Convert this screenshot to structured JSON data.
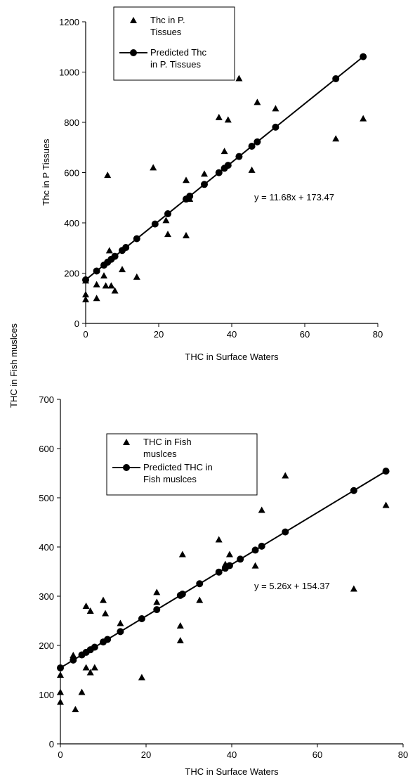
{
  "chart_data": [
    {
      "type": "scatter",
      "title": "",
      "xlabel": "THC in Surface Waters",
      "ylabel": "Thc in  P Tissues",
      "xlim": [
        0,
        80
      ],
      "ylim": [
        0,
        1200
      ],
      "xticks": [
        "0",
        "20",
        "40",
        "60",
        "80"
      ],
      "yticks": [
        "0",
        "200",
        "400",
        "600",
        "800",
        "1000",
        "1200"
      ],
      "legend": [
        "Thc in P. Tissues",
        "Predicted Thc in P. Tissues"
      ],
      "legend_lines": [
        [
          "Thc in P.",
          "Tissues"
        ],
        [
          "Predicted Thc",
          "in P. Tissues"
        ]
      ],
      "legend_position": "top-center",
      "equation": "y = 11.68x + 173.47",
      "series": [
        {
          "name": "Thc in P. Tissues",
          "marker": "triangle",
          "points": [
            [
              0,
              95
            ],
            [
              0,
              115
            ],
            [
              0,
              170
            ],
            [
              3,
              100
            ],
            [
              3,
              155
            ],
            [
              5,
              190
            ],
            [
              5.5,
              150
            ],
            [
              6,
              590
            ],
            [
              6.5,
              290
            ],
            [
              7,
              150
            ],
            [
              8,
              130
            ],
            [
              10,
              215
            ],
            [
              14,
              185
            ],
            [
              18.5,
              620
            ],
            [
              22,
              410
            ],
            [
              22.5,
              355
            ],
            [
              27.5,
              570
            ],
            [
              27.5,
              350
            ],
            [
              28.5,
              495
            ],
            [
              32.5,
              595
            ],
            [
              36.5,
              820
            ],
            [
              38,
              685
            ],
            [
              39,
              810
            ],
            [
              42,
              975
            ],
            [
              45.5,
              610
            ],
            [
              47,
              880
            ],
            [
              52,
              855
            ],
            [
              68.5,
              735
            ],
            [
              76,
              815
            ]
          ]
        },
        {
          "name": "Predicted Thc in P. Tissues",
          "marker": "circle",
          "x": [
            0,
            3,
            5,
            6,
            7,
            8,
            10,
            11,
            14,
            19,
            22.5,
            27.5,
            28.5,
            32.5,
            36.5,
            38,
            39,
            42,
            45.5,
            47,
            52,
            68.5,
            76
          ]
        }
      ]
    },
    {
      "type": "scatter",
      "title": "",
      "xlabel": "THC in Surface Waters",
      "ylabel": "THC in Fish  muslces",
      "xlim": [
        0,
        80
      ],
      "ylim": [
        0,
        700
      ],
      "xticks": [
        "0",
        "20",
        "40",
        "60",
        "80"
      ],
      "yticks": [
        "0",
        "100",
        "200",
        "300",
        "400",
        "500",
        "600",
        "700"
      ],
      "legend": [
        "THC in Fish muslces",
        "Predicted THC in Fish muslces"
      ],
      "legend_lines": [
        [
          "THC in Fish",
          "muslces"
        ],
        [
          "Predicted THC in",
          "Fish muslces"
        ]
      ],
      "legend_position": "top-center",
      "equation": "y = 5.26x + 154.37",
      "series": [
        {
          "name": "THC in Fish muslces",
          "marker": "triangle",
          "points": [
            [
              0,
              85
            ],
            [
              0,
              105
            ],
            [
              0,
              140
            ],
            [
              3,
              180
            ],
            [
              3.5,
              70
            ],
            [
              5,
              105
            ],
            [
              6,
              280
            ],
            [
              6,
              155
            ],
            [
              7,
              270
            ],
            [
              7,
              145
            ],
            [
              8,
              155
            ],
            [
              10,
              292
            ],
            [
              10.5,
              265
            ],
            [
              14,
              245
            ],
            [
              19,
              135
            ],
            [
              22.5,
              308
            ],
            [
              22.5,
              288
            ],
            [
              28,
              240
            ],
            [
              28,
              210
            ],
            [
              28.5,
              385
            ],
            [
              32.5,
              292
            ],
            [
              37,
              415
            ],
            [
              38.5,
              365
            ],
            [
              39.5,
              385
            ],
            [
              45.5,
              362
            ],
            [
              47,
              475
            ],
            [
              52.5,
              545
            ],
            [
              68.5,
              315
            ],
            [
              76,
              485
            ]
          ]
        },
        {
          "name": "Predicted THC in Fish muslces",
          "marker": "circle",
          "x": [
            0,
            3,
            5,
            6,
            7,
            8,
            10,
            11,
            14,
            19,
            22.5,
            28,
            28.5,
            32.5,
            37,
            38.5,
            39.5,
            42,
            45.5,
            47,
            52.5,
            68.5,
            76
          ]
        }
      ]
    }
  ]
}
